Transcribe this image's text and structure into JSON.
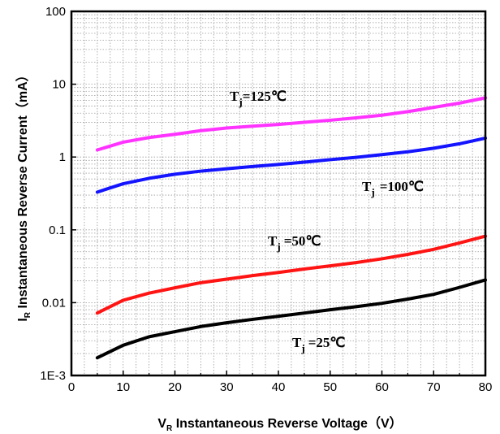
{
  "chart_data": {
    "type": "line",
    "title": "",
    "xlabel": {
      "main": "V",
      "sub": "R",
      "rest": " Instantaneous Reverse Voltage（V）"
    },
    "ylabel": {
      "main": "I",
      "sub": "R",
      "rest": " Instantaneous Reverse Current（mA）"
    },
    "xlim": [
      0,
      80
    ],
    "ylim": [
      0.001,
      100
    ],
    "yscale": "log",
    "grid": true,
    "x_ticks": [
      "0",
      "10",
      "20",
      "30",
      "40",
      "50",
      "60",
      "70",
      "80"
    ],
    "y_ticks": [
      {
        "value": 100,
        "label": "100"
      },
      {
        "value": 10,
        "label": "10"
      },
      {
        "value": 1,
        "label": "1"
      },
      {
        "value": 0.1,
        "label": "0.1"
      },
      {
        "value": 0.01,
        "label": "0.01"
      },
      {
        "value": 0.001,
        "label": "1E-3"
      }
    ],
    "series": [
      {
        "label": {
          "main": "T",
          "sub": "j",
          "rest": "=125℃"
        },
        "color": "#ff33ff",
        "x": [
          5,
          10,
          15,
          20,
          25,
          30,
          35,
          40,
          45,
          50,
          55,
          60,
          65,
          70,
          75,
          80
        ],
        "y": [
          1.25,
          1.6,
          1.85,
          2.05,
          2.3,
          2.5,
          2.65,
          2.8,
          3.0,
          3.2,
          3.45,
          3.75,
          4.2,
          4.8,
          5.5,
          6.5
        ]
      },
      {
        "label": {
          "main": "T",
          "sub": "j",
          "rest": "=100℃"
        },
        "color": "#1414ff",
        "x": [
          5,
          10,
          15,
          20,
          25,
          30,
          35,
          40,
          45,
          50,
          55,
          60,
          65,
          70,
          75,
          80
        ],
        "y": [
          0.33,
          0.43,
          0.51,
          0.58,
          0.64,
          0.69,
          0.74,
          0.79,
          0.85,
          0.92,
          0.99,
          1.08,
          1.18,
          1.32,
          1.52,
          1.82
        ]
      },
      {
        "label": {
          "main": "T",
          "sub": "j",
          "rest": "=50℃"
        },
        "color": "#ff1414",
        "x": [
          5,
          10,
          15,
          20,
          25,
          30,
          35,
          40,
          45,
          50,
          55,
          60,
          65,
          70,
          75,
          80
        ],
        "y": [
          0.0072,
          0.0108,
          0.0135,
          0.016,
          0.0188,
          0.021,
          0.0235,
          0.026,
          0.029,
          0.032,
          0.0355,
          0.04,
          0.046,
          0.054,
          0.066,
          0.082
        ]
      },
      {
        "label": {
          "main": "T",
          "sub": "j",
          "rest": "=25℃"
        },
        "color": "#000000",
        "x": [
          5,
          10,
          15,
          20,
          25,
          30,
          35,
          40,
          45,
          50,
          55,
          60,
          65,
          70,
          75,
          80
        ],
        "y": [
          0.00175,
          0.0026,
          0.0034,
          0.004,
          0.0047,
          0.0053,
          0.0059,
          0.0065,
          0.0072,
          0.008,
          0.0088,
          0.0098,
          0.0112,
          0.013,
          0.0162,
          0.0205
        ]
      }
    ]
  }
}
